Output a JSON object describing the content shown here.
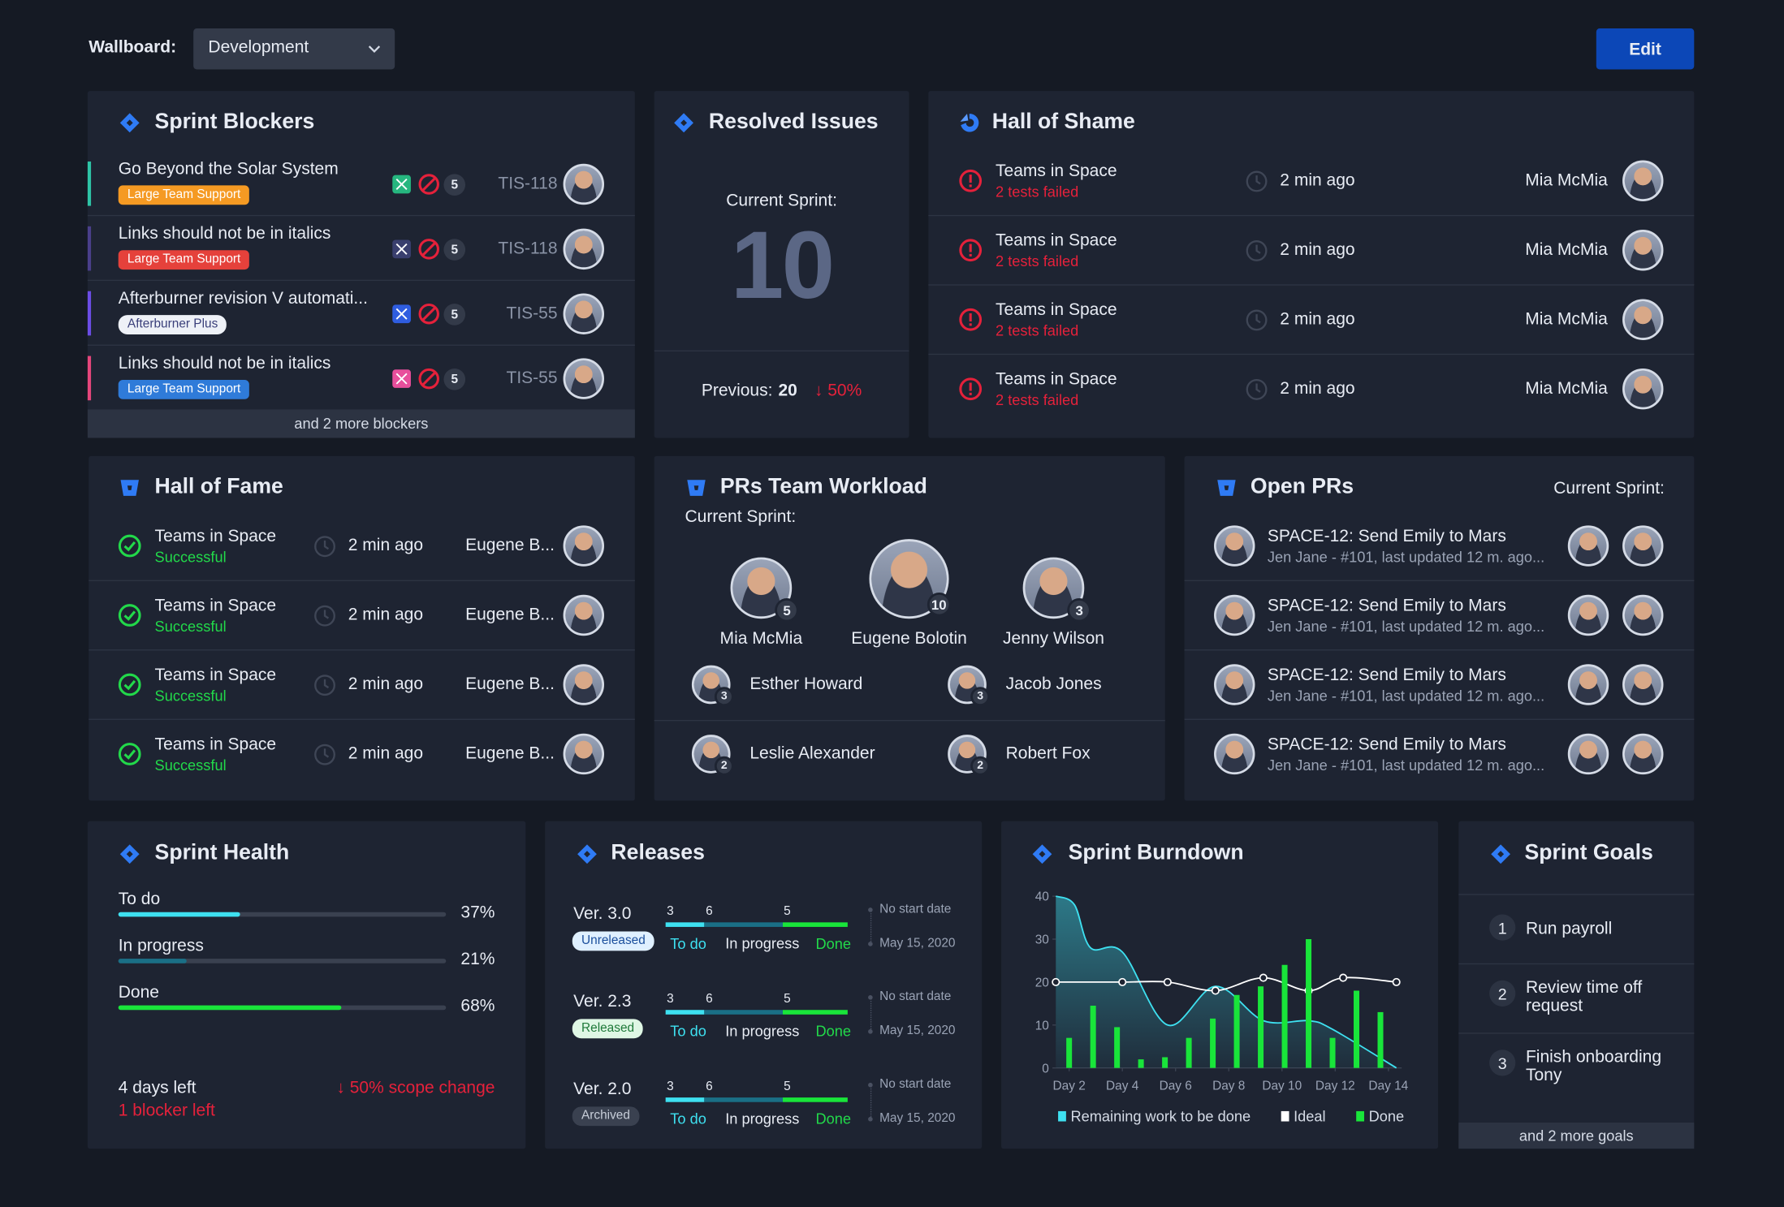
{
  "header": {
    "label": "Wallboard:",
    "dropdown": "Development",
    "button": "Edit"
  },
  "sprint_blockers": {
    "title": "Sprint Blockers",
    "items": [
      {
        "title": "Go Beyond the Solar System",
        "tag": "Large Team Support",
        "count": 5,
        "key": "TIS-118"
      },
      {
        "title": "Links should not be in italics",
        "tag": "Large Team Support",
        "count": 5,
        "key": "TIS-118"
      },
      {
        "title": "Afterburner revision V automati...",
        "tag": "Afterburner Plus",
        "count": 5,
        "key": "TIS-55"
      },
      {
        "title": "Links should not be in italics",
        "tag": "Large Team Support",
        "count": 5,
        "key": "TIS-55"
      }
    ],
    "footer": "and 2 more blockers"
  },
  "resolved_issues": {
    "title": "Resolved Issues",
    "label": "Current Sprint:",
    "value": 10,
    "previous_label": "Previous:",
    "previous": 20,
    "change": "↓ 50%"
  },
  "hall_of_shame": {
    "title": "Hall of Shame",
    "items": [
      {
        "project": "Teams in Space",
        "status": "2 tests failed",
        "time": "2 min ago",
        "user": "Mia McMia"
      },
      {
        "project": "Teams in Space",
        "status": "2 tests failed",
        "time": "2 min ago",
        "user": "Mia McMia"
      },
      {
        "project": "Teams in Space",
        "status": "2 tests failed",
        "time": "2 min ago",
        "user": "Mia McMia"
      },
      {
        "project": "Teams in Space",
        "status": "2 tests failed",
        "time": "2 min ago",
        "user": "Mia McMia"
      }
    ]
  },
  "hall_of_fame": {
    "title": "Hall of Fame",
    "items": [
      {
        "project": "Teams in Space",
        "status": "Successful",
        "time": "2 min ago",
        "user": "Eugene B..."
      },
      {
        "project": "Teams in Space",
        "status": "Successful",
        "time": "2 min ago",
        "user": "Eugene B..."
      },
      {
        "project": "Teams in Space",
        "status": "Successful",
        "time": "2 min ago",
        "user": "Eugene B..."
      },
      {
        "project": "Teams in Space",
        "status": "Successful",
        "time": "2 min ago",
        "user": "Eugene B..."
      }
    ]
  },
  "prs_team_workload": {
    "title": "PRs Team Workload",
    "subtitle": "Current Sprint:",
    "top": [
      {
        "name": "Mia McMia",
        "count": 5
      },
      {
        "name": "Eugene Bolotin",
        "count": 10
      },
      {
        "name": "Jenny Wilson",
        "count": 3
      }
    ],
    "others": [
      {
        "name": "Esther Howard",
        "count": 3
      },
      {
        "name": "Jacob Jones",
        "count": 3
      },
      {
        "name": "Leslie Alexander",
        "count": 2
      },
      {
        "name": "Robert Fox",
        "count": 2
      }
    ]
  },
  "open_prs": {
    "title": "Open PRs",
    "subtitle": "Current Sprint:",
    "items": [
      {
        "title": "SPACE-12: Send Emily to Mars",
        "meta": "Jen Jane - #101, last updated 12 m. ago..."
      },
      {
        "title": "SPACE-12: Send Emily to Mars",
        "meta": "Jen Jane - #101, last updated 12 m. ago..."
      },
      {
        "title": "SPACE-12: Send Emily to Mars",
        "meta": "Jen Jane - #101, last updated 12 m. ago..."
      },
      {
        "title": "SPACE-12: Send Emily to Mars",
        "meta": "Jen Jane - #101, last updated 12 m. ago..."
      }
    ]
  },
  "sprint_health": {
    "title": "Sprint Health",
    "items": [
      {
        "name": "To do",
        "value": 37,
        "label": "37%"
      },
      {
        "name": "In progress",
        "value": 21,
        "label": "21%"
      },
      {
        "name": "Done",
        "value": 68,
        "label": "68%"
      }
    ],
    "days_left": "4 days left",
    "blockers_left": "1 blocker left",
    "scope_change": "↓ 50% scope change"
  },
  "releases": {
    "title": "Releases",
    "labels": [
      "To do",
      "In progress",
      "Done"
    ],
    "items": [
      {
        "version": "Ver. 3.0",
        "status": "Unreleased",
        "todo": 3,
        "in_progress": 6,
        "done": 5,
        "start": "No start date",
        "end": "May 15, 2020"
      },
      {
        "version": "Ver. 2.3",
        "status": "Released",
        "todo": 3,
        "in_progress": 6,
        "done": 5,
        "start": "No start date",
        "end": "May 15, 2020"
      },
      {
        "version": "Ver. 2.0",
        "status": "Archived",
        "todo": 3,
        "in_progress": 6,
        "done": 5,
        "start": "No start date",
        "end": "May 15, 2020"
      }
    ]
  },
  "sprint_burndown": {
    "title": "Sprint Burndown",
    "type": "line",
    "xlim": [
      1.5,
      14.5
    ],
    "xticks": [
      {
        "value": 2,
        "label": "Day 2"
      },
      {
        "value": 4,
        "label": "Day 4"
      },
      {
        "value": 6,
        "label": "Day 6"
      },
      {
        "value": 8,
        "label": "Day 8"
      },
      {
        "value": 10,
        "label": "Day 10"
      },
      {
        "value": 12,
        "label": "Day 12"
      },
      {
        "value": 14,
        "label": "Day 14"
      }
    ],
    "ylim": [
      0,
      40
    ],
    "yticks": [
      0,
      10,
      20,
      30,
      40
    ],
    "series": [
      {
        "name": "Remaining work to be done",
        "color": "#3ee0f0",
        "x": [
          1.5,
          2.2,
          2.8,
          4,
          5.7,
          7.5,
          9.3,
          11,
          11.9,
          14.3
        ],
        "values": [
          40,
          38,
          28,
          27,
          10,
          19,
          11,
          11,
          9,
          0
        ]
      },
      {
        "name": "Ideal",
        "color": "#ffffff",
        "x": [
          1.5,
          4,
          5.7,
          7.5,
          9.3,
          11,
          12.3,
          14.3
        ],
        "values": [
          20,
          20,
          20,
          18,
          21,
          18,
          21,
          20
        ]
      },
      {
        "name": "Done",
        "color": "#19e53a",
        "type": "bar",
        "x": [
          2,
          2.9,
          3.8,
          4.7,
          5.6,
          6.5,
          7.4,
          8.3,
          9.2,
          10.1,
          11,
          11.9,
          12.8,
          13.7
        ],
        "values": [
          7,
          14.5,
          9.5,
          2,
          2.5,
          7,
          11.5,
          17,
          19,
          24,
          30,
          7,
          18,
          13
        ]
      }
    ]
  },
  "sprint_goals": {
    "title": "Sprint Goals",
    "items": [
      {
        "number": 1,
        "text": "Run payroll"
      },
      {
        "number": 2,
        "text": "Review time off request"
      },
      {
        "number": 3,
        "text": "Finish onboarding Tony"
      }
    ],
    "footer": "and 2 more goals"
  }
}
